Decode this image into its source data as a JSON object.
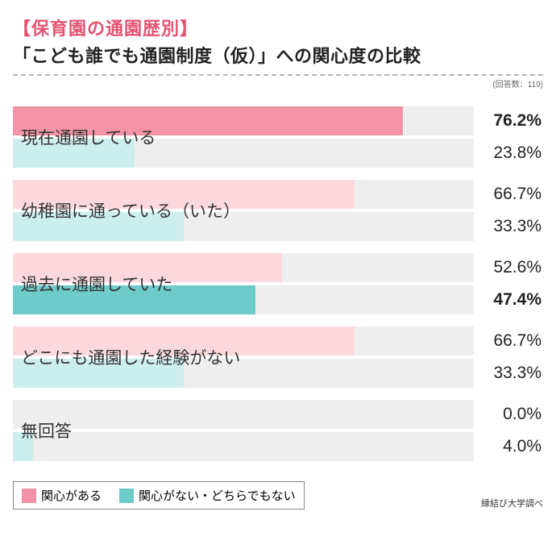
{
  "title_bracket": "【保育園の通園歴別】",
  "title_main": "「こども誰でも通園制度（仮）」への関心度の比較",
  "n_respondents_label": "(回答数：119)",
  "footer_credit": "縁結び大学調べ",
  "colors": {
    "pink_strong": "#f393a5",
    "pink_light": "#fbd8de",
    "teal_strong": "#6dcbc9",
    "teal_light": "#cceeed",
    "track": "#eeeeee",
    "title_pink": "#e35471"
  },
  "legend": [
    {
      "label": "関心がある",
      "swatch": "#f393a5"
    },
    {
      "label": "関心がない・どちらでもない",
      "swatch": "#6dcbc9"
    }
  ],
  "max_value": 90,
  "categories": [
    {
      "label": "現在通園している",
      "bars": [
        {
          "value": 76.2,
          "value_text": "76.2%",
          "bold": true,
          "color": "#f393a5"
        },
        {
          "value": 23.8,
          "value_text": "23.8%",
          "bold": false,
          "color": "#cceeed"
        }
      ]
    },
    {
      "label": "幼稚園に通っている（いた）",
      "bars": [
        {
          "value": 66.7,
          "value_text": "66.7%",
          "bold": false,
          "color": "#fbd8de"
        },
        {
          "value": 33.3,
          "value_text": "33.3%",
          "bold": false,
          "color": "#cceeed"
        }
      ]
    },
    {
      "label": "過去に通園していた",
      "bars": [
        {
          "value": 52.6,
          "value_text": "52.6%",
          "bold": false,
          "color": "#fbd8de"
        },
        {
          "value": 47.4,
          "value_text": "47.4%",
          "bold": true,
          "color": "#6dcbc9"
        }
      ]
    },
    {
      "label": "どこにも通園した経験がない",
      "bars": [
        {
          "value": 66.7,
          "value_text": "66.7%",
          "bold": false,
          "color": "#fbd8de"
        },
        {
          "value": 33.3,
          "value_text": "33.3%",
          "bold": false,
          "color": "#cceeed"
        }
      ]
    },
    {
      "label": "無回答",
      "bars": [
        {
          "value": 0.0,
          "value_text": "0.0%",
          "bold": false,
          "color": "#fbd8de"
        },
        {
          "value": 4.0,
          "value_text": "4.0%",
          "bold": false,
          "color": "#cceeed"
        }
      ]
    }
  ]
}
